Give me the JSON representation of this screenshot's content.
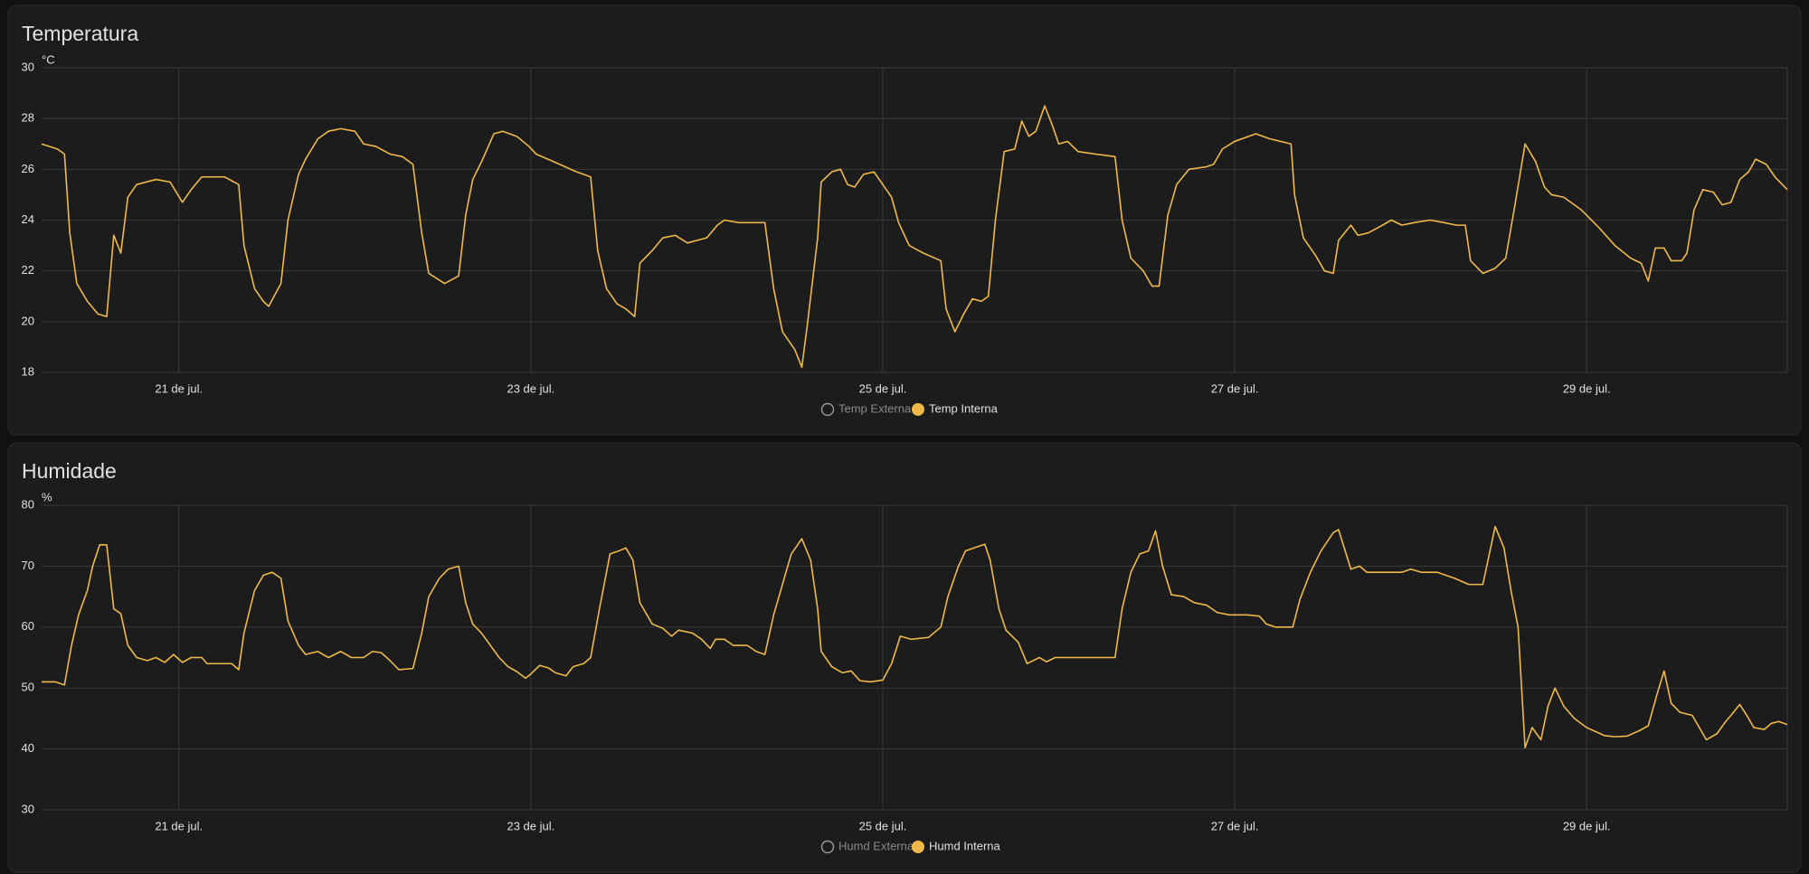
{
  "chart_data": [
    {
      "type": "line",
      "title": "Temperatura",
      "y_unit": "°C",
      "xlim": [
        20.22,
        30.14
      ],
      "xticks": [
        {
          "value": 21,
          "label": "21 de jul."
        },
        {
          "value": 23,
          "label": "23 de jul."
        },
        {
          "value": 25,
          "label": "25 de jul."
        },
        {
          "value": 27,
          "label": "27 de jul."
        },
        {
          "value": 29,
          "label": "29 de jul."
        }
      ],
      "ylim": [
        18,
        30
      ],
      "yticks": [
        18,
        20,
        22,
        24,
        26,
        28,
        30
      ],
      "grid": true,
      "x": [
        20.22,
        20.31,
        20.35,
        20.38,
        20.42,
        20.48,
        20.54,
        20.59,
        20.63,
        20.67,
        20.71,
        20.76,
        20.87,
        20.95,
        21.02,
        21.07,
        21.13,
        21.26,
        21.34,
        21.37,
        21.43,
        21.48,
        21.51,
        21.58,
        21.62,
        21.68,
        21.72,
        21.79,
        21.85,
        21.92,
        22.0,
        22.05,
        22.12,
        22.2,
        22.27,
        22.33,
        22.38,
        22.42,
        22.51,
        22.59,
        22.63,
        22.67,
        22.72,
        22.79,
        22.84,
        22.92,
        22.99,
        23.03,
        23.13,
        23.26,
        23.34,
        23.38,
        23.43,
        23.49,
        23.54,
        23.59,
        23.62,
        23.69,
        23.75,
        23.82,
        23.89,
        24.0,
        24.06,
        24.1,
        24.18,
        24.33,
        24.38,
        24.43,
        24.5,
        24.54,
        24.57,
        24.63,
        24.65,
        24.71,
        24.76,
        24.8,
        24.84,
        24.89,
        24.95,
        25.0,
        25.05,
        25.09,
        25.15,
        25.23,
        25.33,
        25.36,
        25.41,
        25.46,
        25.51,
        25.56,
        25.6,
        25.64,
        25.69,
        25.75,
        25.79,
        25.83,
        25.87,
        25.92,
        25.96,
        26.0,
        26.05,
        26.11,
        26.21,
        26.32,
        26.36,
        26.41,
        26.48,
        26.53,
        26.57,
        26.62,
        26.67,
        26.74,
        26.84,
        26.88,
        26.93,
        27.0,
        27.12,
        27.2,
        27.32,
        27.34,
        27.39,
        27.46,
        27.51,
        27.56,
        27.59,
        27.66,
        27.7,
        27.76,
        27.84,
        27.89,
        27.95,
        28.02,
        28.11,
        28.19,
        28.26,
        28.31,
        28.34,
        28.41,
        28.48,
        28.54,
        28.59,
        28.65,
        28.71,
        28.76,
        28.8,
        28.87,
        28.97,
        29.07,
        29.16,
        29.25,
        29.31,
        29.35,
        29.39,
        29.44,
        29.48,
        29.54,
        29.57,
        29.61,
        29.66,
        29.72,
        29.77,
        29.82,
        29.87,
        29.92,
        29.96,
        30.02,
        30.07,
        30.14
      ],
      "series": [
        {
          "name": "Temp Externa",
          "visible": false
        },
        {
          "name": "Temp Interna",
          "visible": true,
          "color": "#f0b94b",
          "values": [
            27.0,
            26.8,
            26.6,
            23.5,
            21.5,
            20.8,
            20.3,
            20.2,
            23.4,
            22.7,
            24.9,
            25.4,
            25.6,
            25.5,
            24.7,
            25.2,
            25.7,
            25.7,
            25.4,
            23.0,
            21.3,
            20.8,
            20.6,
            21.5,
            24.0,
            25.8,
            26.4,
            27.2,
            27.5,
            27.6,
            27.5,
            27.0,
            26.9,
            26.6,
            26.5,
            26.2,
            23.5,
            21.9,
            21.5,
            21.8,
            24.2,
            25.6,
            26.3,
            27.4,
            27.5,
            27.3,
            26.9,
            26.6,
            26.3,
            25.9,
            25.7,
            22.8,
            21.3,
            20.7,
            20.5,
            20.2,
            22.3,
            22.8,
            23.3,
            23.4,
            23.1,
            23.3,
            23.8,
            24.0,
            23.9,
            23.9,
            21.3,
            19.6,
            18.9,
            18.2,
            19.8,
            23.3,
            25.5,
            25.9,
            26.0,
            25.4,
            25.3,
            25.8,
            25.9,
            25.4,
            24.9,
            23.9,
            23.0,
            22.7,
            22.4,
            20.5,
            19.6,
            20.3,
            20.9,
            20.8,
            21.0,
            24.0,
            26.7,
            26.8,
            27.9,
            27.3,
            27.5,
            28.5,
            27.8,
            27.0,
            27.1,
            26.7,
            26.6,
            26.5,
            24.0,
            22.5,
            22.0,
            21.4,
            21.4,
            24.2,
            25.4,
            26.0,
            26.1,
            26.2,
            26.8,
            27.1,
            27.4,
            27.2,
            27.0,
            25.0,
            23.3,
            22.6,
            22.0,
            21.9,
            23.2,
            23.8,
            23.4,
            23.5,
            23.8,
            24.0,
            23.8,
            23.9,
            24.0,
            23.9,
            23.8,
            23.8,
            22.4,
            21.9,
            22.1,
            22.5,
            24.5,
            27.0,
            26.3,
            25.3,
            25.0,
            24.9,
            24.4,
            23.7,
            23.0,
            22.5,
            22.3,
            21.6,
            22.9,
            22.9,
            22.4,
            22.4,
            22.7,
            24.4,
            25.2,
            25.1,
            24.6,
            24.7,
            25.6,
            25.9,
            26.4,
            26.2,
            25.7,
            25.2
          ]
        }
      ]
    },
    {
      "type": "line",
      "title": "Humidade",
      "y_unit": "%",
      "xlim": [
        20.22,
        30.14
      ],
      "xticks": [
        {
          "value": 21,
          "label": "21 de jul."
        },
        {
          "value": 23,
          "label": "23 de jul."
        },
        {
          "value": 25,
          "label": "25 de jul."
        },
        {
          "value": 27,
          "label": "27 de jul."
        },
        {
          "value": 29,
          "label": "29 de jul."
        }
      ],
      "ylim": [
        30,
        80
      ],
      "yticks": [
        30,
        40,
        50,
        60,
        70,
        80
      ],
      "grid": true,
      "x": [
        20.22,
        20.3,
        20.35,
        20.39,
        20.43,
        20.48,
        20.51,
        20.55,
        20.59,
        20.63,
        20.67,
        20.71,
        20.76,
        20.82,
        20.87,
        20.92,
        20.97,
        21.02,
        21.07,
        21.13,
        21.16,
        21.3,
        21.34,
        21.37,
        21.43,
        21.48,
        21.53,
        21.58,
        21.62,
        21.68,
        21.72,
        21.79,
        21.85,
        21.92,
        21.98,
        22.05,
        22.1,
        22.15,
        22.2,
        22.25,
        22.33,
        22.38,
        22.42,
        22.48,
        22.53,
        22.59,
        22.63,
        22.67,
        22.72,
        22.77,
        22.82,
        22.87,
        22.92,
        22.97,
        23.0,
        23.05,
        23.1,
        23.14,
        23.2,
        23.24,
        23.3,
        23.34,
        23.39,
        23.45,
        23.5,
        23.54,
        23.58,
        23.62,
        23.69,
        23.75,
        23.8,
        23.84,
        23.92,
        23.97,
        24.02,
        24.05,
        24.1,
        24.15,
        24.23,
        24.28,
        24.33,
        24.38,
        24.43,
        24.48,
        24.54,
        24.59,
        24.63,
        24.65,
        24.71,
        24.77,
        24.82,
        24.87,
        24.93,
        25.0,
        25.05,
        25.1,
        25.16,
        25.26,
        25.33,
        25.37,
        25.43,
        25.47,
        25.52,
        25.58,
        25.61,
        25.66,
        25.7,
        25.77,
        25.82,
        25.89,
        25.93,
        25.98,
        26.08,
        26.21,
        26.32,
        26.36,
        26.41,
        26.46,
        26.51,
        26.55,
        26.59,
        26.64,
        26.71,
        26.77,
        26.84,
        26.9,
        26.97,
        27.07,
        27.14,
        27.18,
        27.23,
        27.33,
        27.37,
        27.43,
        27.49,
        27.56,
        27.59,
        27.66,
        27.71,
        27.75,
        27.85,
        27.95,
        28.0,
        28.06,
        28.15,
        28.25,
        28.33,
        28.41,
        28.48,
        28.53,
        28.57,
        28.61,
        28.65,
        28.69,
        28.74,
        28.78,
        28.82,
        28.87,
        28.93,
        29.0,
        29.1,
        29.16,
        29.23,
        29.3,
        29.35,
        29.4,
        29.44,
        29.48,
        29.53,
        29.6,
        29.64,
        29.68,
        29.74,
        29.79,
        29.82,
        29.87,
        29.91,
        29.95,
        30.01,
        30.05,
        30.09,
        30.14
      ],
      "series": [
        {
          "name": "Humd Externa",
          "visible": false
        },
        {
          "name": "Humd Interna",
          "visible": true,
          "color": "#f0b94b",
          "values": [
            51,
            51,
            50.5,
            57,
            62,
            66,
            70,
            73.5,
            73.5,
            63,
            62.2,
            57,
            55,
            54.5,
            55,
            54.2,
            55.5,
            54.2,
            55,
            55,
            54,
            54,
            53,
            59,
            66,
            68.5,
            69,
            68,
            61,
            57,
            55.5,
            56,
            55,
            56,
            55,
            55,
            56,
            55.8,
            54.5,
            53,
            53.2,
            59,
            65,
            68,
            69.5,
            70,
            64,
            60.5,
            59,
            57,
            55,
            53.5,
            52.7,
            51.6,
            52.3,
            53.7,
            53.3,
            52.5,
            52,
            53.5,
            54,
            55,
            63,
            72,
            72.5,
            73,
            71,
            64,
            60.5,
            59.8,
            58.5,
            59.5,
            59,
            58,
            56.5,
            58,
            58,
            57,
            57,
            56,
            55.5,
            62,
            67,
            72,
            74.5,
            71,
            63,
            56,
            53.5,
            52.5,
            52.8,
            51.2,
            51,
            51.3,
            54,
            58.5,
            58,
            58.3,
            60,
            65,
            70,
            72.5,
            73,
            73.6,
            71,
            63,
            59.5,
            57.5,
            54,
            55,
            54.3,
            55,
            55,
            55,
            55,
            63,
            69,
            72,
            72.5,
            75.8,
            70,
            65.3,
            65,
            64,
            63.6,
            62.4,
            62,
            62,
            61.8,
            60.5,
            60,
            60,
            64.5,
            69,
            72.5,
            75.5,
            76,
            69.5,
            70,
            69,
            69,
            69,
            69.5,
            69,
            69,
            68,
            67,
            67,
            76.5,
            73,
            66,
            60,
            40.2,
            43.5,
            41.5,
            47,
            50,
            47,
            45,
            43.5,
            42.2,
            42,
            42.1,
            43,
            43.8,
            49,
            52.8,
            47.5,
            46,
            45.5,
            43.5,
            41.5,
            42.5,
            44.5,
            45.5,
            47.3,
            45.5,
            43.5,
            43.2,
            44.2,
            44.5,
            44
          ]
        }
      ]
    }
  ]
}
